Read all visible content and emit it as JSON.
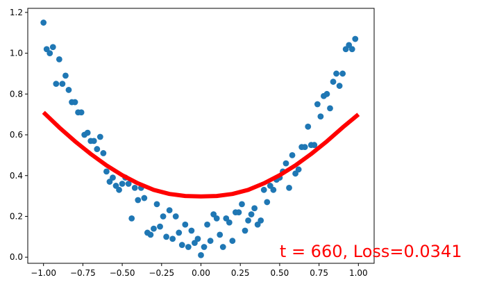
{
  "chart_data": {
    "type": "scatter",
    "xlim": [
      -1.1,
      1.1
    ],
    "ylim": [
      -0.03,
      1.22
    ],
    "xticks": [
      -1.0,
      -0.75,
      -0.5,
      -0.25,
      0.0,
      0.25,
      0.5,
      0.75,
      1.0
    ],
    "xtick_labels": [
      "−1.00",
      "−0.75",
      "−0.50",
      "−0.25",
      "0.00",
      "0.25",
      "0.50",
      "0.75",
      "1.00"
    ],
    "yticks": [
      0.0,
      0.2,
      0.4,
      0.6,
      0.8,
      1.0,
      1.2
    ],
    "ytick_labels": [
      "0.0",
      "0.2",
      "0.4",
      "0.6",
      "0.8",
      "1.0",
      "1.2"
    ],
    "grid": false,
    "annotation": {
      "text": "t = 660, Loss=0.0341",
      "x": 0.5,
      "y": 0.0,
      "color": "#ff0000"
    },
    "series": [
      {
        "type": "scatter",
        "color": "#1f77b4",
        "points": [
          [
            -1.0,
            1.15
          ],
          [
            -0.98,
            1.02
          ],
          [
            -0.96,
            1.0
          ],
          [
            -0.94,
            1.03
          ],
          [
            -0.92,
            0.85
          ],
          [
            -0.9,
            0.97
          ],
          [
            -0.88,
            0.85
          ],
          [
            -0.86,
            0.89
          ],
          [
            -0.84,
            0.82
          ],
          [
            -0.82,
            0.76
          ],
          [
            -0.8,
            0.76
          ],
          [
            -0.78,
            0.71
          ],
          [
            -0.76,
            0.71
          ],
          [
            -0.74,
            0.6
          ],
          [
            -0.72,
            0.61
          ],
          [
            -0.7,
            0.57
          ],
          [
            -0.68,
            0.57
          ],
          [
            -0.66,
            0.53
          ],
          [
            -0.64,
            0.59
          ],
          [
            -0.62,
            0.51
          ],
          [
            -0.6,
            0.42
          ],
          [
            -0.58,
            0.37
          ],
          [
            -0.56,
            0.39
          ],
          [
            -0.54,
            0.35
          ],
          [
            -0.52,
            0.33
          ],
          [
            -0.5,
            0.36
          ],
          [
            -0.48,
            0.39
          ],
          [
            -0.46,
            0.36
          ],
          [
            -0.44,
            0.19
          ],
          [
            -0.42,
            0.34
          ],
          [
            -0.4,
            0.28
          ],
          [
            -0.38,
            0.34
          ],
          [
            -0.36,
            0.29
          ],
          [
            -0.34,
            0.12
          ],
          [
            -0.32,
            0.11
          ],
          [
            -0.3,
            0.14
          ],
          [
            -0.28,
            0.26
          ],
          [
            -0.26,
            0.15
          ],
          [
            -0.24,
            0.2
          ],
          [
            -0.22,
            0.1
          ],
          [
            -0.2,
            0.23
          ],
          [
            -0.18,
            0.09
          ],
          [
            -0.16,
            0.2
          ],
          [
            -0.14,
            0.12
          ],
          [
            -0.12,
            0.06
          ],
          [
            -0.1,
            0.16
          ],
          [
            -0.08,
            0.05
          ],
          [
            -0.06,
            0.13
          ],
          [
            -0.04,
            0.07
          ],
          [
            -0.02,
            0.09
          ],
          [
            0.0,
            0.01
          ],
          [
            0.02,
            0.05
          ],
          [
            0.04,
            0.16
          ],
          [
            0.06,
            0.08
          ],
          [
            0.08,
            0.21
          ],
          [
            0.1,
            0.19
          ],
          [
            0.12,
            0.11
          ],
          [
            0.14,
            0.05
          ],
          [
            0.16,
            0.19
          ],
          [
            0.18,
            0.17
          ],
          [
            0.2,
            0.08
          ],
          [
            0.22,
            0.22
          ],
          [
            0.24,
            0.22
          ],
          [
            0.26,
            0.26
          ],
          [
            0.28,
            0.13
          ],
          [
            0.3,
            0.18
          ],
          [
            0.32,
            0.21
          ],
          [
            0.34,
            0.24
          ],
          [
            0.36,
            0.16
          ],
          [
            0.38,
            0.18
          ],
          [
            0.4,
            0.33
          ],
          [
            0.42,
            0.27
          ],
          [
            0.44,
            0.35
          ],
          [
            0.46,
            0.33
          ],
          [
            0.48,
            0.38
          ],
          [
            0.5,
            0.39
          ],
          [
            0.52,
            0.42
          ],
          [
            0.54,
            0.46
          ],
          [
            0.56,
            0.34
          ],
          [
            0.58,
            0.5
          ],
          [
            0.6,
            0.41
          ],
          [
            0.62,
            0.43
          ],
          [
            0.64,
            0.54
          ],
          [
            0.66,
            0.54
          ],
          [
            0.68,
            0.64
          ],
          [
            0.7,
            0.55
          ],
          [
            0.72,
            0.55
          ],
          [
            0.74,
            0.75
          ],
          [
            0.76,
            0.69
          ],
          [
            0.78,
            0.79
          ],
          [
            0.8,
            0.8
          ],
          [
            0.82,
            0.73
          ],
          [
            0.84,
            0.86
          ],
          [
            0.86,
            0.9
          ],
          [
            0.88,
            0.84
          ],
          [
            0.9,
            0.9
          ],
          [
            0.92,
            1.02
          ],
          [
            0.94,
            1.04
          ],
          [
            0.96,
            1.02
          ],
          [
            0.98,
            1.07
          ]
        ]
      },
      {
        "type": "line",
        "color": "#ff0000",
        "x": [
          -1.0,
          -0.9,
          -0.8,
          -0.7,
          -0.6,
          -0.5,
          -0.4,
          -0.3,
          -0.2,
          -0.1,
          0.0,
          0.1,
          0.2,
          0.3,
          0.4,
          0.5,
          0.6,
          0.7,
          0.8,
          0.9,
          1.0
        ],
        "y": [
          0.71,
          0.636,
          0.568,
          0.506,
          0.45,
          0.402,
          0.362,
          0.33,
          0.31,
          0.3,
          0.298,
          0.3,
          0.31,
          0.33,
          0.362,
          0.402,
          0.45,
          0.506,
          0.568,
          0.636,
          0.7
        ]
      }
    ]
  }
}
